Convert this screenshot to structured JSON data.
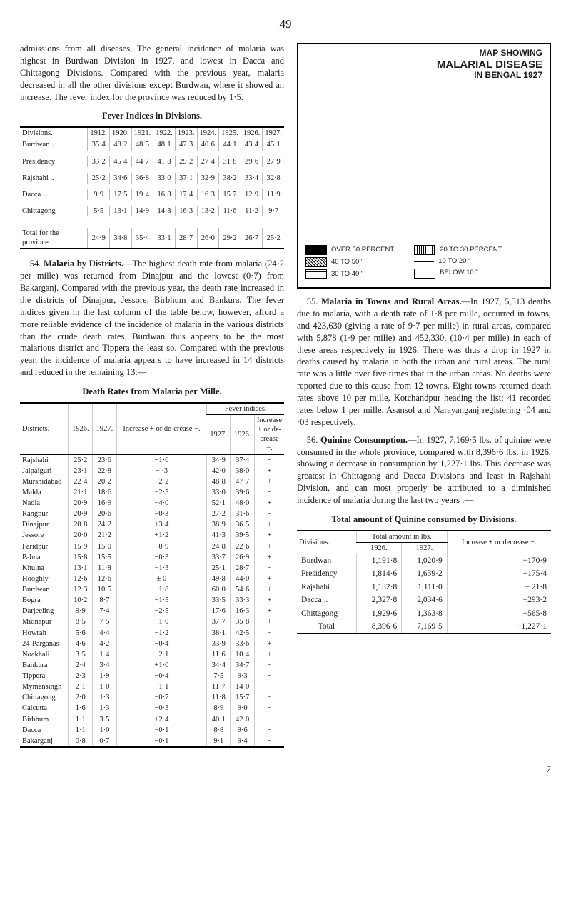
{
  "page_number_top": "49",
  "page_number_bottom": "7",
  "left": {
    "para1": "admissions from all diseases. The general incidence of malaria was highest in Burdwan Division in 1927, and lowest in Dacca and Chittagong Divisions. Compared with the previous year, malaria decreased in all the other divisions except Burdwan, where it showed an increase. The fever index for the province was reduced by 1·5.",
    "fever_title": "Fever Indices in Divisions.",
    "fever": {
      "col_label": "Divisions.",
      "years": [
        "1912.",
        "1920.",
        "1921.",
        "1922.",
        "1923.",
        "1924.",
        "1925.",
        "1926.",
        "1927."
      ],
      "rows": [
        [
          "Burdwan ..",
          "35·4",
          "48·2",
          "48·5",
          "48·1",
          "47·3",
          "40·6",
          "44·1",
          "43·4",
          "45·1"
        ],
        [
          "Presidency",
          "33·2",
          "45·4",
          "44·7",
          "41·8",
          "29·2",
          "27·4",
          "31·8",
          "29·6",
          "27·9"
        ],
        [
          "Rajshahi ..",
          "25·2",
          "34·6",
          "36·8",
          "33·0",
          "37·1",
          "32·9",
          "38·2",
          "33·4",
          "32·8"
        ],
        [
          "Dacca    ..",
          "9·9",
          "17·5",
          "19·4",
          "16·8",
          "17·4",
          "16·3",
          "15·7",
          "12·9",
          "11·9"
        ],
        [
          "Chittagong",
          "5·5",
          "13·1",
          "14·9",
          "14·3",
          "16·3",
          "13·2",
          "11·6",
          "11·2",
          "9·7"
        ]
      ],
      "total_label": "Total for the province.",
      "total": [
        "24·9",
        "34·8",
        "35·4",
        "33·1",
        "28·7",
        "26·0",
        "29·2",
        "26·7",
        "25·2"
      ]
    },
    "para54_lead": "54.",
    "para54_bold": "Malaria by Districts.",
    "para54_body": "—The highest death rate from malaria (24·2 per mille) was returned from Dinajpur and the lowest (0·7) from Bakarganj. Compared with the previous year, the death rate increased in the districts of Dinajpur, Jessore, Birbhum and Bankura. The fever indices given in the last column of the table below, however, afford a more reliable evidence of the incidence of malaria in the various districts than the crude death rates. Burdwan thus appears to be the most malarious district and Tippera the least so. Compared with the previous year, the incidence of malaria appears to have increased in 14 districts and reduced in the remaining 13:—",
    "death_title": "Death Rates from Malaria per Mille.",
    "death": {
      "head_districts": "Districts.",
      "head_1926": "1926.",
      "head_1927": "1927.",
      "head_incdec": "Increase + or de-crease −.",
      "head_fever": "Fever indices.",
      "head_f1927": "1927.",
      "head_f1926": "1926.",
      "head_fincdec": "Increase + or de-crease −.",
      "rows": [
        [
          "Rajshahi",
          "25·2",
          "23·6",
          "−1·6",
          "34·9",
          "37·4",
          "−"
        ],
        [
          "Jalpaiguri",
          "23·1",
          "22·8",
          "− ·3",
          "42·0",
          "38·0",
          "+"
        ],
        [
          "Murshidabad",
          "22·4",
          "20·2",
          "−2·2",
          "48·8",
          "47·7",
          "+"
        ],
        [
          "Malda",
          "21·1",
          "18·6",
          "−2·5",
          "33·0",
          "39·6",
          "−"
        ],
        [
          "Nadia",
          "20·9",
          "16·9",
          "−4·0",
          "52·1",
          "48·0",
          "+"
        ],
        [
          "Rangpur",
          "20·9",
          "20·6",
          "−0·3",
          "27·2",
          "31·6",
          "−"
        ],
        [
          "Dinajpur",
          "20·8",
          "24·2",
          "+3·4",
          "38·9",
          "36·5",
          "+"
        ],
        [
          "Jessore",
          "20·0",
          "21·2",
          "+1·2",
          "41·3",
          "39·5",
          "+"
        ],
        [
          "Faridpur",
          "15·9",
          "15·0",
          "−0·9",
          "24·8",
          "22·6",
          "+"
        ],
        [
          "Pabna",
          "15·8",
          "15·5",
          "−0·3",
          "33·7",
          "26·9",
          "+"
        ],
        [
          "Khulna",
          "13·1",
          "11·8",
          "−1·3",
          "25·1",
          "28·7",
          "−"
        ],
        [
          "Hooghly",
          "12·6",
          "12·6",
          "± 0",
          "49·8",
          "44·0",
          "+"
        ],
        [
          "Burdwan",
          "12·3",
          "10·5",
          "−1·8",
          "60·0",
          "54·6",
          "+"
        ],
        [
          "Bogra",
          "10·2",
          "8·7",
          "−1·5",
          "33·5",
          "33·3",
          "+"
        ],
        [
          "Darjeeling",
          "9·9",
          "7·4",
          "−2·5",
          "17·6",
          "16·3",
          "+"
        ],
        [
          "Midnapur",
          "8·5",
          "7·5",
          "−1·0",
          "37·7",
          "35·8",
          "+"
        ],
        [
          "Howrah",
          "5·6",
          "4·4",
          "−1·2",
          "38·1",
          "42·5",
          "−"
        ],
        [
          "24-Parganas",
          "4·6",
          "4·2",
          "−0·4",
          "33·9",
          "33·6",
          "+"
        ],
        [
          "Noakhali",
          "3·5",
          "1·4",
          "−2·1",
          "11·6",
          "10·4",
          "+"
        ],
        [
          "Bankura",
          "2·4",
          "3·4",
          "+1·0",
          "34·4",
          "34·7",
          "−"
        ],
        [
          "Tippera",
          "2·3",
          "1·9",
          "−0·4",
          "7·5",
          "9·3",
          "−"
        ],
        [
          "Mymensingh",
          "2·1",
          "1·0",
          "−1·1",
          "11·7",
          "14·0",
          "−"
        ],
        [
          "Chittagong",
          "2·0",
          "1·3",
          "−0·7",
          "11·8",
          "15·7",
          "−"
        ],
        [
          "Calcutta",
          "1·6",
          "1·3",
          "−0·3",
          "8·9",
          "9·0",
          "−"
        ],
        [
          "Birbhum",
          "1·1",
          "3·5",
          "+2·4",
          "40·1",
          "42·0",
          "−"
        ],
        [
          "Dacca",
          "1·1",
          "1·0",
          "−0·1",
          "8·8",
          "9·6",
          "−"
        ],
        [
          "Bakarganj",
          "0·8",
          "0·7",
          "−0·1",
          "9·1",
          "9·4",
          "−"
        ]
      ]
    }
  },
  "right": {
    "map": {
      "title_l1": "MAP SHOWING",
      "title_l2": "MALARIAL DISEASE",
      "title_l3": "IN BENGAL 1927",
      "legend": [
        {
          "sw": "black",
          "label": "OVER 50 PERCENT"
        },
        {
          "sw": "cross",
          "label": "40 TO 50    \""
        },
        {
          "sw": "hatch",
          "label": "30 TO 40    \""
        },
        {
          "sw": "vlines",
          "label": "20 TO 30 PERCENT"
        },
        {
          "sw": "dash",
          "label": "10 TO 20    \""
        },
        {
          "sw": "white",
          "label": "BELOW 10    \""
        }
      ]
    },
    "para55_lead": "55.",
    "para55_bold": "Malaria in Towns and Rural Areas.",
    "para55_body": "—In 1927, 5,513 deaths due to malaria, with a death rate of 1·8 per mille, occurred in towns, and 423,630 (giving a rate of 9·7 per mille) in rural areas, compared with 5,878 (1·9 per mille) and 452,330, (10·4 per mille) in each of these areas respectively in 1926. There was thus a drop in 1927 in deaths caused by malaria in both the urban and rural areas. The rural rate was a little over five times that in the urban areas. No deaths were reported due to this cause from 12 towns. Eight towns returned death rates above 10 per mille, Kotchandpur heading the list; 41 recorded rates below 1 per mille, Asansol and Narayanganj registering ·04 and ·03 respectively.",
    "para56_lead": "56.",
    "para56_bold": "Quinine Consumption.",
    "para56_body": "—In 1927, 7,169·5 lbs. of quinine were consumed in the whole province, compared with 8,396·6 lbs. in 1926, showing a decrease in consumption by 1,227·1 lbs. This decrease was greatest in Chittagong and Dacca Divisions and least in Rajshahi Division, and can most properly be attributed to a diminished incidence of malaria during the last two years :—",
    "qtot_title": "Total amount of Quinine consumed by Divisions.",
    "qtot": {
      "head_div": "Divisions.",
      "head_amt": "Total amount in lbs.",
      "head_1926": "1926.",
      "head_1927": "1927.",
      "head_inc": "Increase + or decrease −.",
      "rows": [
        [
          "Burdwan",
          "1,191·8",
          "1,020·9",
          "−170·9"
        ],
        [
          "Presidency",
          "1,814·6",
          "1,639·2",
          "−175·4"
        ],
        [
          "Rajshahi",
          "1,132·8",
          "1,111·0",
          "− 21·8"
        ],
        [
          "Dacca  ..",
          "2,327·8",
          "2,034·6",
          "−293·2"
        ],
        [
          "Chittagong",
          "1,929·6",
          "1,363·8",
          "−565·8"
        ]
      ],
      "total_label": "Total",
      "total": [
        "8,396·6",
        "7,169·5",
        "−1,227·1"
      ]
    }
  }
}
